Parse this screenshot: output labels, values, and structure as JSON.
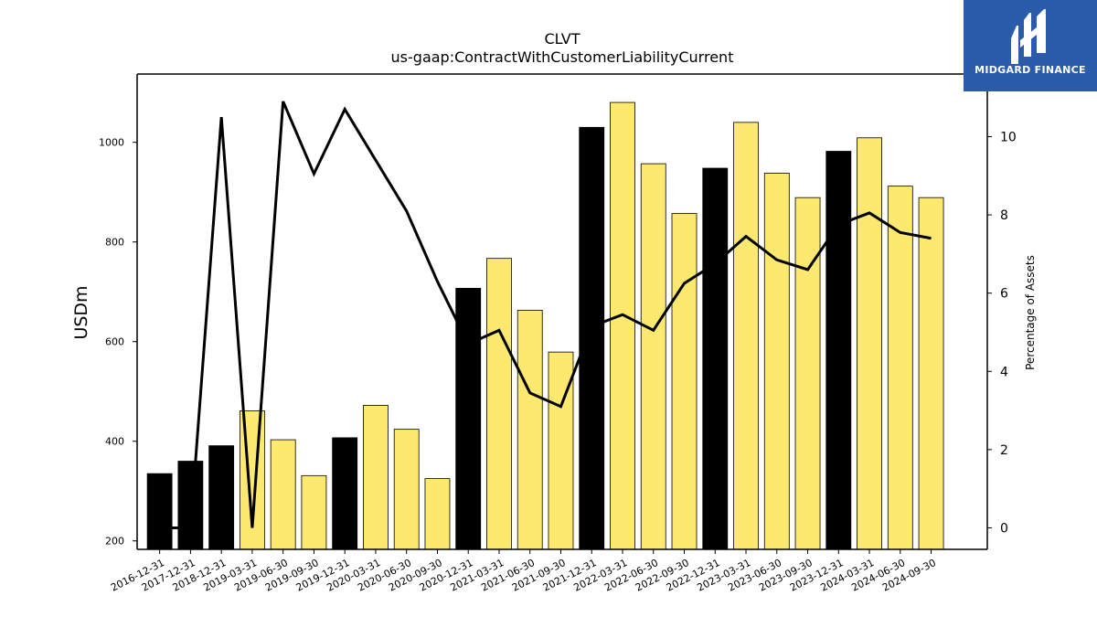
{
  "chart_data": {
    "type": "bar",
    "title": "CLVT",
    "subtitle": "us-gaap:ContractWithCustomerLiabilityCurrent",
    "ylabel": "USDm",
    "y2label": "Percentage of Assets",
    "ylim": [
      183,
      1137
    ],
    "y2lim": [
      -0.55,
      11.6
    ],
    "yticks": [
      200,
      400,
      600,
      800,
      1000
    ],
    "y2ticks": [
      0,
      2,
      4,
      6,
      8,
      10
    ],
    "categories": [
      "2016-12-31",
      "2017-12-31",
      "2018-12-31",
      "2019-03-31",
      "2019-06-30",
      "2019-09-30",
      "2019-12-31",
      "2020-03-31",
      "2020-06-30",
      "2020-09-30",
      "2020-12-31",
      "2021-03-31",
      "2021-06-30",
      "2021-09-30",
      "2021-12-31",
      "2022-03-31",
      "2022-06-30",
      "2022-09-30",
      "2022-12-31",
      "2023-03-31",
      "2023-06-30",
      "2023-09-30",
      "2023-12-31",
      "2024-03-31",
      "2024-06-30",
      "2024-09-30"
    ],
    "series": [
      {
        "kind": "bar",
        "values": [
          335,
          360,
          391,
          461,
          403,
          331,
          407,
          472,
          424,
          325,
          707,
          767,
          663,
          579,
          1030,
          1080,
          957,
          857,
          948,
          1040,
          938,
          889,
          982,
          1009,
          912,
          889
        ],
        "colors": [
          "#000000",
          "#000000",
          "#000000",
          "#fde96f",
          "#fde96f",
          "#fde96f",
          "#000000",
          "#fde96f",
          "#fde96f",
          "#fde96f",
          "#000000",
          "#fde96f",
          "#fde96f",
          "#fde96f",
          "#000000",
          "#fde96f",
          "#fde96f",
          "#fde96f",
          "#000000",
          "#fde96f",
          "#fde96f",
          "#fde96f",
          "#000000",
          "#fde96f",
          "#fde96f",
          "#fde96f"
        ]
      },
      {
        "kind": "line",
        "axis": "right",
        "color": "#000000",
        "values": [
          0.0,
          0.0,
          10.5,
          0.0,
          10.9,
          9.05,
          10.7,
          9.4,
          8.1,
          6.3,
          4.7,
          5.05,
          3.45,
          3.1,
          5.15,
          5.45,
          5.05,
          6.25,
          6.75,
          7.45,
          6.85,
          6.6,
          7.75,
          8.05,
          7.55,
          7.4
        ]
      }
    ],
    "grid": false,
    "legend": "none"
  },
  "logo": {
    "text": "MIDGARD FINANCE",
    "bg_color": "#2b5bab"
  }
}
